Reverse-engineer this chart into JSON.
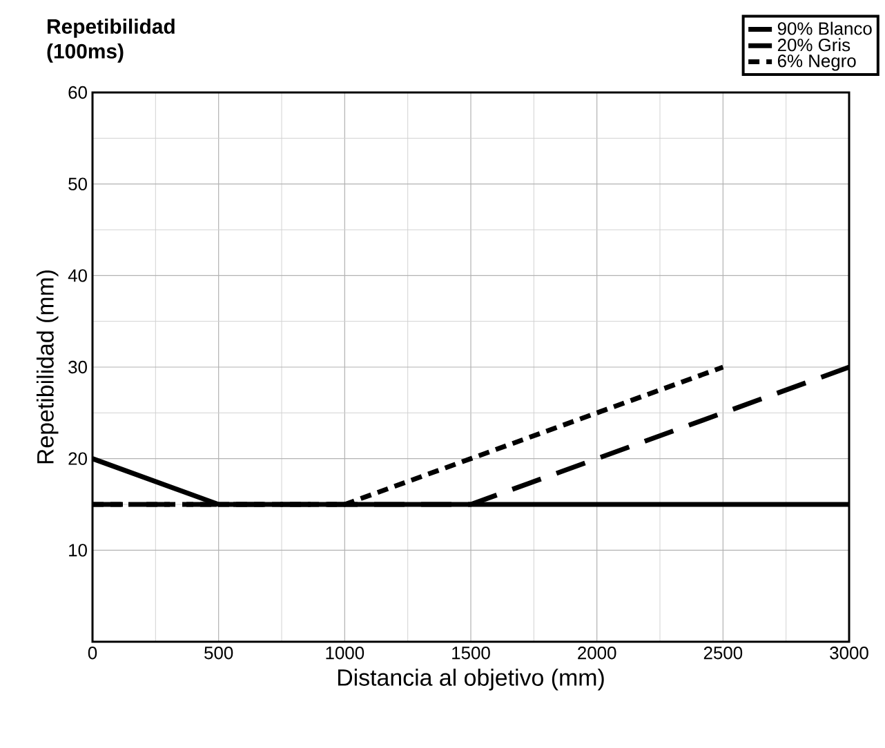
{
  "chart_data": {
    "type": "line",
    "title": "Repetibilidad\n(100ms)",
    "xlabel": "Distancia al objetivo (mm)",
    "ylabel": "Repetibilidad (mm)",
    "xlim": [
      0,
      3000
    ],
    "ylim": [
      0,
      60
    ],
    "xticks": [
      0,
      500,
      1000,
      1500,
      2000,
      2500,
      3000
    ],
    "yticks": [
      10,
      20,
      30,
      40,
      50,
      60
    ],
    "grid": true,
    "legend": "top right",
    "marker": "none",
    "series": [
      {
        "name": "90% Blanco",
        "color": "#000000",
        "line_style": "solid",
        "x": [
          0,
          500,
          3000
        ],
        "values": [
          20,
          15,
          15
        ]
      },
      {
        "name": "20%  Gris",
        "color": "#000000",
        "line_style": "dashed",
        "x": [
          0,
          1500,
          3000
        ],
        "values": [
          15,
          15,
          30
        ]
      },
      {
        "name": "6%   Negro",
        "color": "#000000",
        "line_style": "dotted",
        "x": [
          0,
          1000,
          2500
        ],
        "values": [
          15,
          15,
          30
        ]
      }
    ]
  }
}
